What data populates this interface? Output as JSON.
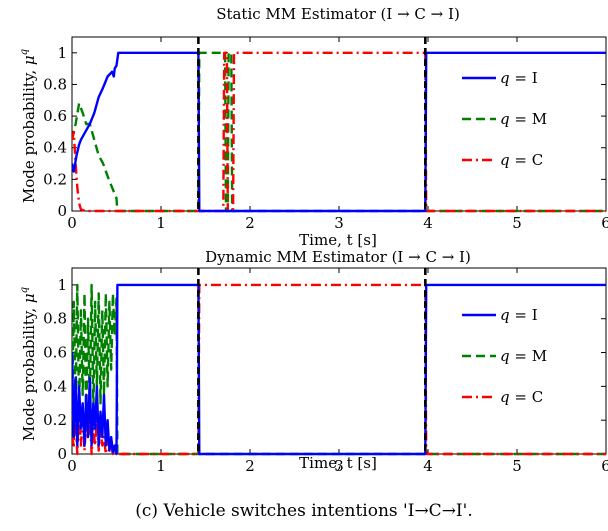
{
  "figure": {
    "caption": "(c) Vehicle switches intentions 'I→C→I'."
  },
  "colors": {
    "I": "#0000ff",
    "M": "#008000",
    "C": "#ff0000",
    "switch_marker": "#000000"
  },
  "chart_data": [
    {
      "type": "line",
      "title": "Static MM Estimator (I → C → I)",
      "xlabel": "Time, t [s]",
      "ylabel": "Mode probability, μ^q",
      "xlim": [
        0,
        6
      ],
      "ylim": [
        0,
        1.1
      ],
      "xticks": [
        "0",
        "1",
        "2",
        "3",
        "4",
        "5",
        "6"
      ],
      "yticks": [
        "0",
        "0.2",
        "0.4",
        "0.6",
        "0.8",
        "1"
      ],
      "grid": false,
      "legend_position": "right",
      "switch_times": [
        1.42,
        3.97
      ],
      "series": [
        {
          "name": "q = I",
          "style": "solid",
          "x": [
            0,
            0.02,
            0.05,
            0.08,
            0.1,
            0.15,
            0.2,
            0.25,
            0.3,
            0.35,
            0.4,
            0.45,
            0.47,
            0.48,
            0.5,
            0.52,
            1.42,
            1.43,
            3.97,
            3.98,
            6
          ],
          "y": [
            0.3,
            0.25,
            0.35,
            0.42,
            0.45,
            0.5,
            0.55,
            0.62,
            0.72,
            0.78,
            0.85,
            0.88,
            0.85,
            0.9,
            0.92,
            1.0,
            1.0,
            0.0,
            0.0,
            1.0,
            1.0
          ]
        },
        {
          "name": "q = M",
          "style": "dashed",
          "x": [
            0,
            0.04,
            0.08,
            0.12,
            0.16,
            0.2,
            0.25,
            0.3,
            0.35,
            0.4,
            0.45,
            0.5,
            0.51,
            1.42,
            1.43,
            1.72,
            1.73,
            1.75,
            1.76,
            1.79,
            1.8,
            1.83,
            1.84,
            6
          ],
          "y": [
            0.45,
            0.55,
            0.68,
            0.62,
            0.55,
            0.55,
            0.45,
            0.35,
            0.3,
            0.22,
            0.15,
            0.08,
            0.0,
            0.0,
            1.0,
            1.0,
            0.0,
            0.0,
            1.0,
            1.0,
            0.0,
            0.0,
            0.0,
            0.0
          ]
        },
        {
          "name": "q = C",
          "style": "dashdot",
          "x": [
            0,
            0.02,
            0.04,
            0.06,
            0.08,
            0.1,
            0.15,
            1.7,
            1.71,
            1.74,
            1.75,
            1.81,
            1.82,
            1.84,
            1.85,
            3.97,
            3.98,
            6
          ],
          "y": [
            0.45,
            0.5,
            0.3,
            0.15,
            0.05,
            0.01,
            0.0,
            0.0,
            1.0,
            1.0,
            0.0,
            0.0,
            1.0,
            1.0,
            1.0,
            1.0,
            0.0,
            0.0
          ]
        }
      ]
    },
    {
      "type": "line",
      "title": "Dynamic MM Estimator (I → C → I)",
      "xlabel": "Time, t [s]",
      "ylabel": "Mode probability, μ^q",
      "xlim": [
        0,
        6
      ],
      "ylim": [
        0,
        1.1
      ],
      "xticks": [
        "0",
        "1",
        "2",
        "3",
        "4",
        "5",
        "6"
      ],
      "yticks": [
        "0",
        "0.2",
        "0.4",
        "0.6",
        "0.8",
        "1"
      ],
      "grid": false,
      "legend_position": "right",
      "switch_times": [
        1.42,
        3.97
      ],
      "series": [
        {
          "name": "q = I",
          "style": "solid",
          "x": [
            0,
            0.02,
            0.04,
            0.06,
            0.08,
            0.1,
            0.12,
            0.14,
            0.16,
            0.18,
            0.2,
            0.22,
            0.24,
            0.26,
            0.28,
            0.3,
            0.32,
            0.34,
            0.36,
            0.38,
            0.4,
            0.42,
            0.44,
            0.46,
            0.48,
            0.5,
            0.51,
            1.42,
            1.43,
            3.97,
            3.98,
            6
          ],
          "y": [
            0.6,
            0.1,
            0.45,
            0.05,
            0.4,
            0.15,
            0.3,
            0.05,
            0.35,
            0.1,
            0.45,
            0.05,
            0.3,
            0.15,
            0.4,
            0.05,
            0.25,
            0.1,
            0.35,
            0.05,
            0.2,
            0.02,
            0.1,
            0.01,
            0.05,
            0.0,
            1.0,
            1.0,
            0.0,
            0.0,
            1.0,
            1.0
          ]
        },
        {
          "name": "q = M",
          "style": "dashed",
          "x": [
            0,
            0.02,
            0.04,
            0.06,
            0.08,
            0.1,
            0.12,
            0.14,
            0.16,
            0.18,
            0.2,
            0.22,
            0.24,
            0.26,
            0.28,
            0.3,
            0.32,
            0.34,
            0.36,
            0.38,
            0.4,
            0.42,
            0.44,
            0.46,
            0.48,
            0.5,
            0.51,
            6
          ],
          "y": [
            0.2,
            0.9,
            0.3,
            1.0,
            0.25,
            0.85,
            0.35,
            0.95,
            0.2,
            0.8,
            0.3,
            1.0,
            0.25,
            0.9,
            0.4,
            0.95,
            0.3,
            0.85,
            0.35,
            0.95,
            0.4,
            0.9,
            0.5,
            0.95,
            0.7,
            0.92,
            0.0,
            0.0
          ]
        },
        {
          "name": "q = C",
          "style": "dashdot",
          "x": [
            0,
            0.02,
            0.04,
            0.06,
            0.08,
            0.1,
            0.12,
            0.14,
            0.16,
            0.18,
            0.2,
            0.22,
            0.24,
            0.26,
            0.28,
            0.3,
            0.32,
            0.34,
            0.36,
            0.38,
            0.4,
            0.42,
            0.44,
            0.46,
            0.48,
            0.5,
            1.42,
            1.43,
            3.97,
            3.98,
            6
          ],
          "y": [
            0.1,
            0.05,
            0.2,
            0.0,
            0.3,
            0.05,
            0.25,
            0.02,
            0.2,
            0.1,
            0.25,
            0.0,
            0.15,
            0.05,
            0.2,
            0.02,
            0.15,
            0.05,
            0.1,
            0.0,
            0.08,
            0.02,
            0.05,
            0.0,
            0.02,
            0.0,
            0.0,
            1.0,
            1.0,
            0.0,
            0.0
          ]
        }
      ]
    }
  ]
}
